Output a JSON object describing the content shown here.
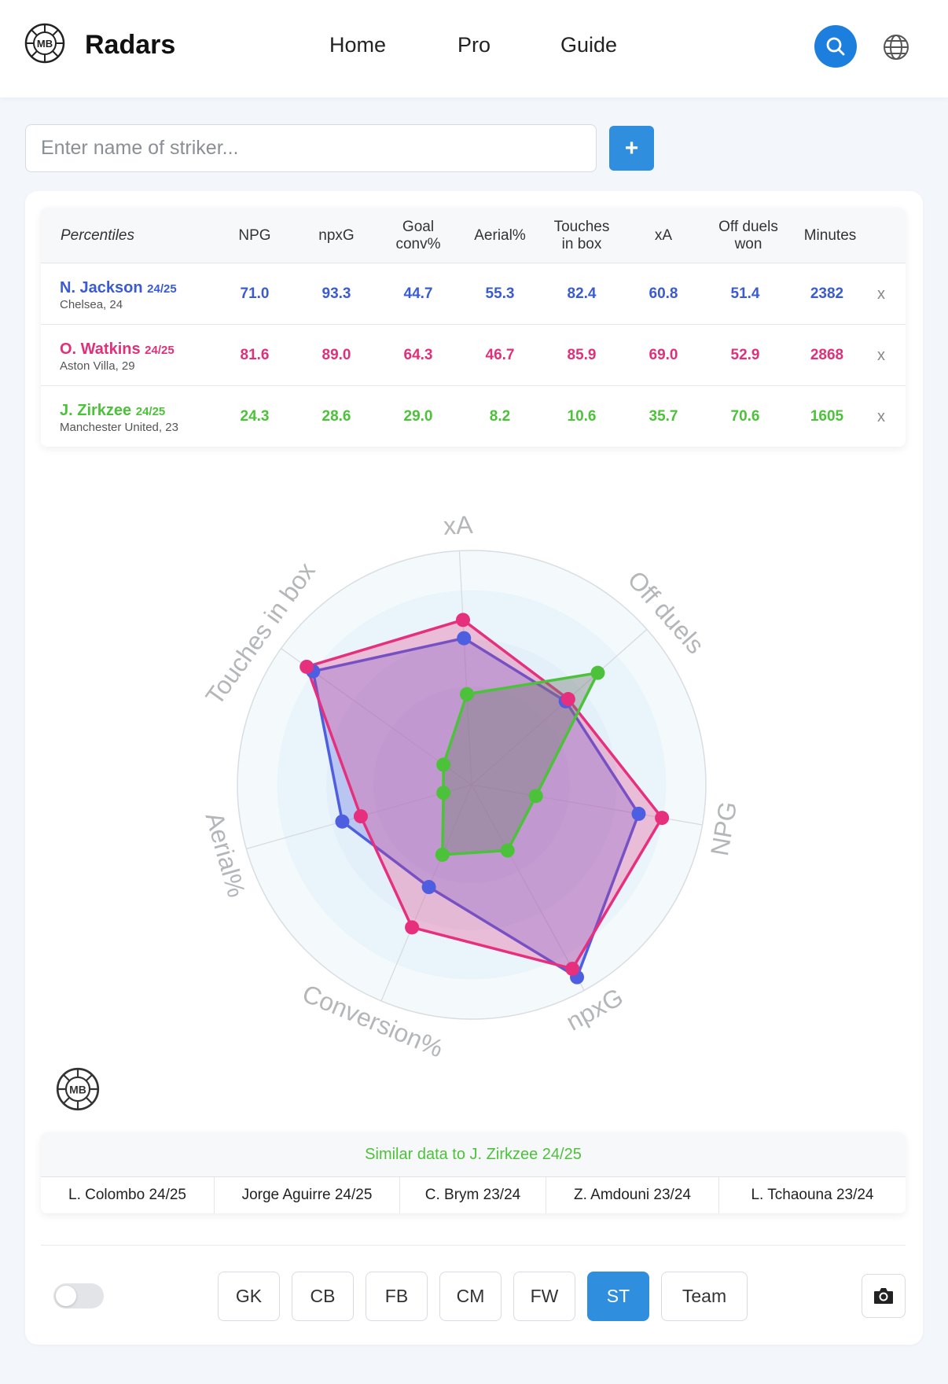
{
  "header": {
    "brand": "Radars",
    "nav": [
      {
        "label": "Home"
      },
      {
        "label": "Pro"
      },
      {
        "label": "Guide"
      }
    ]
  },
  "search": {
    "placeholder": "Enter name of striker...",
    "value": "",
    "add_label": "+"
  },
  "table": {
    "headers": [
      "Percentiles",
      "NPG",
      "npxG",
      "Goal conv%",
      "Aerial%",
      "Touches in box",
      "xA",
      "Off duels won",
      "Minutes"
    ],
    "rows": [
      {
        "name": "N. Jackson",
        "season": "24/25",
        "club": "Chelsea, 24",
        "color": "#3a5bd1",
        "values": [
          "71.0",
          "93.3",
          "44.7",
          "55.3",
          "82.4",
          "60.8",
          "51.4",
          "2382"
        ],
        "remove": "x"
      },
      {
        "name": "O. Watkins",
        "season": "24/25",
        "club": "Aston Villa, 29",
        "color": "#e0307a",
        "values": [
          "81.6",
          "89.0",
          "64.3",
          "46.7",
          "85.9",
          "69.0",
          "52.9",
          "2868"
        ],
        "remove": "x"
      },
      {
        "name": "J. Zirkzee",
        "season": "24/25",
        "club": "Manchester United, 23",
        "color": "#4cc23a",
        "values": [
          "24.3",
          "28.6",
          "29.0",
          "8.2",
          "10.6",
          "35.7",
          "70.6",
          "1605"
        ],
        "remove": "x"
      }
    ]
  },
  "chart_data": {
    "type": "radar",
    "axes": [
      "xA",
      "Off duels",
      "NPG",
      "npxG",
      "Conversion%",
      "Aerial%",
      "Touches in box"
    ],
    "range": [
      0,
      100
    ],
    "series": [
      {
        "name": "N. Jackson 24/25",
        "color": "#4d5fe0",
        "values": [
          60.8,
          51.4,
          71.0,
          93.3,
          44.7,
          55.3,
          82.4
        ]
      },
      {
        "name": "O. Watkins 24/25",
        "color": "#e6307d",
        "values": [
          69.0,
          52.9,
          81.6,
          89.0,
          64.3,
          46.7,
          85.9
        ]
      },
      {
        "name": "J. Zirkzee 24/25",
        "color": "#4cc23a",
        "values": [
          35.7,
          70.6,
          24.3,
          28.6,
          29.0,
          8.2,
          10.6
        ]
      }
    ]
  },
  "similar": {
    "title": "Similar data to J. Zirkzee 24/25",
    "items": [
      "L. Colombo 24/25",
      "Jorge Aguirre 24/25",
      "C. Brym 23/24",
      "Z. Amdouni 23/24",
      "L. Tchaouna 23/24"
    ]
  },
  "positions": {
    "buttons": [
      "GK",
      "CB",
      "FB",
      "CM",
      "FW",
      "ST",
      "Team"
    ],
    "active": "ST"
  },
  "icons": {
    "logo": "mb-logo-icon",
    "search": "search-icon",
    "language": "globe-icon",
    "screenshot": "camera-icon"
  },
  "colors": {
    "accent": "#2f8fde",
    "jackson": "#3a5bd1",
    "watkins": "#e0307a",
    "zirkzee": "#4cc23a"
  }
}
